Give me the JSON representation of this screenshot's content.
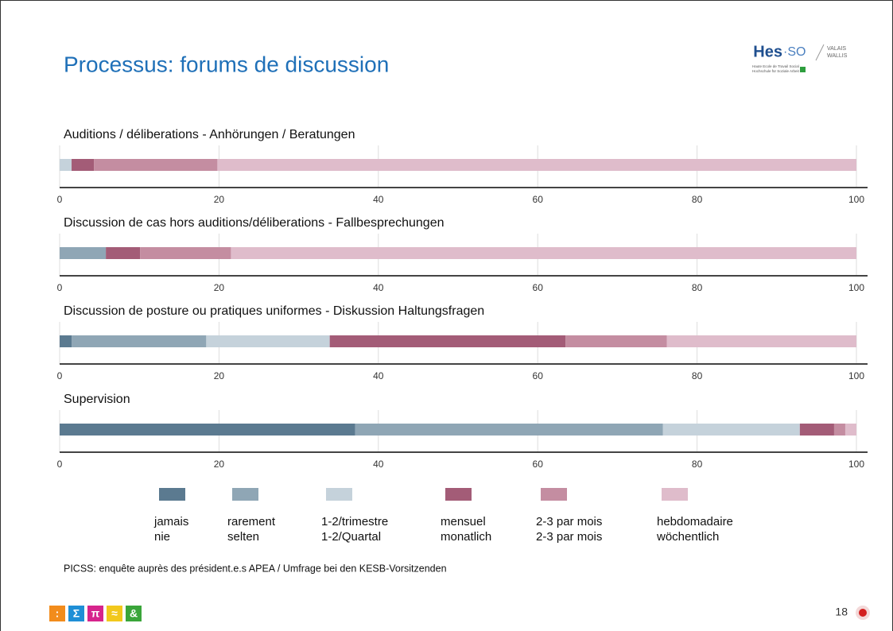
{
  "title": "Processus: forums de discussion",
  "logo": {
    "name": "Hes",
    "suffix": "·SO",
    "region": [
      "VALAIS",
      "WALLIS"
    ],
    "lines": [
      "Haute Ecole de Travail Social",
      "Hochschule für Soziale Arbeit"
    ]
  },
  "legend": [
    {
      "label": [
        "jamais",
        "nie"
      ],
      "color": "#5b7a90"
    },
    {
      "label": [
        "rarement",
        "selten"
      ],
      "color": "#8fa6b5"
    },
    {
      "label": [
        "1-2/trimestre",
        "1-2/Quartal"
      ],
      "color": "#c5d2db"
    },
    {
      "label": [
        "mensuel",
        "monatlich"
      ],
      "color": "#a35c77"
    },
    {
      "label": [
        "2-3 par mois",
        "2-3 par mois"
      ],
      "color": "#c48da1"
    },
    {
      "label": [
        "hebdomadaire",
        "wöchentlich"
      ],
      "color": "#dfbccb"
    }
  ],
  "chart_data": [
    {
      "type": "bar",
      "orientation": "horizontal",
      "stacked": true,
      "title": "Auditions / déliberations - Anhörungen / Beratungen",
      "values": [
        0,
        0,
        1.5,
        2.8,
        15.5,
        80.2
      ],
      "xlim": [
        0,
        100
      ],
      "xticks": [
        0,
        20,
        40,
        60,
        80,
        100
      ],
      "grid": true
    },
    {
      "type": "bar",
      "orientation": "horizontal",
      "stacked": true,
      "title": "Discussion de cas hors auditions/déliberations - Fallbesprechungen",
      "values": [
        0,
        5.8,
        0,
        4.3,
        11.4,
        78.5
      ],
      "xlim": [
        0,
        100
      ],
      "xticks": [
        0,
        20,
        40,
        60,
        80,
        100
      ],
      "grid": true
    },
    {
      "type": "bar",
      "orientation": "horizontal",
      "stacked": true,
      "title": "Discussion de posture ou pratiques uniformes - Diskussion Haltungsfragen",
      "values": [
        1.5,
        16.9,
        15.5,
        29.6,
        12.7,
        23.8
      ],
      "xlim": [
        0,
        100
      ],
      "xticks": [
        0,
        20,
        40,
        60,
        80,
        100
      ],
      "grid": true
    },
    {
      "type": "bar",
      "orientation": "horizontal",
      "stacked": true,
      "title": "Supervision",
      "values": [
        37.1,
        38.6,
        17.2,
        4.3,
        1.4,
        1.4
      ],
      "xlim": [
        0,
        100
      ],
      "xticks": [
        0,
        20,
        40,
        60,
        80,
        100
      ],
      "grid": true
    }
  ],
  "footnote": "PICSS: enquête auprès des président.e.s APEA / Umfrage bei den KESB-Vorsitzenden",
  "icons": [
    ":",
    "Σ",
    "π",
    "≈",
    "&"
  ],
  "page_number": "18"
}
